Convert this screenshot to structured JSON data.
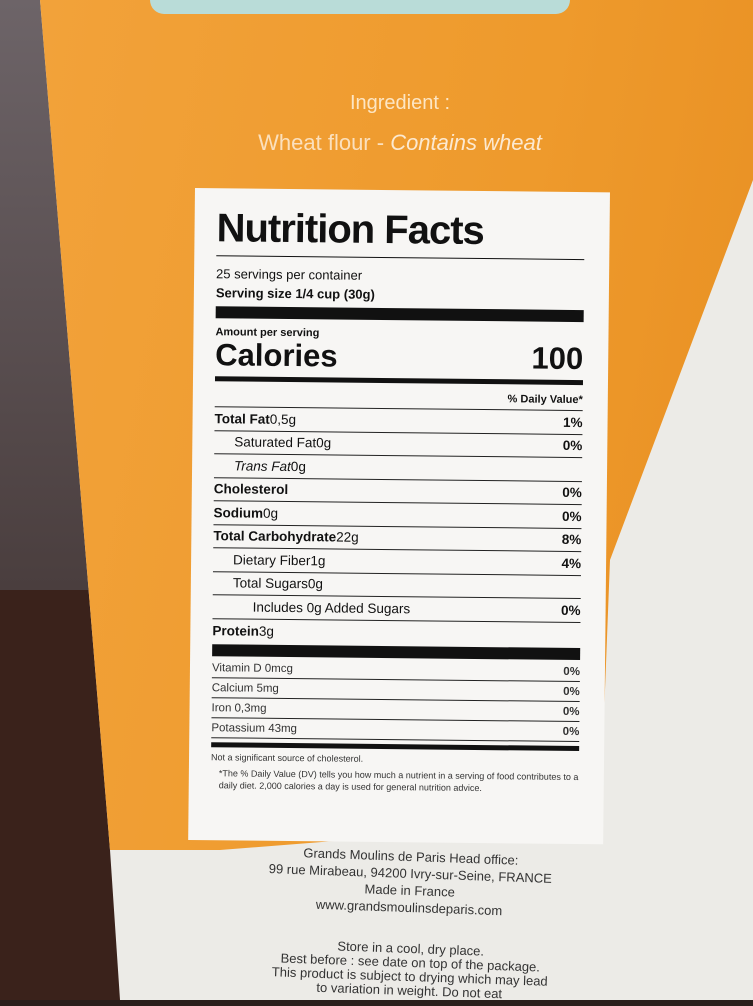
{
  "package": {
    "ingredient_heading": "Ingredient :",
    "ingredient_text": "Wheat flour - ",
    "ingredient_allergen": "Contains wheat",
    "colors": {
      "orange": "#ee9a2c",
      "label": "#f7f6f4",
      "box_white": "#ecebe7"
    }
  },
  "nutrition": {
    "title": "Nutrition Facts",
    "servings": "25 servings per container",
    "serving_size": "Serving size 1/4 cup (30g)",
    "amount_per_serving": "Amount per serving",
    "calories_label": "Calories",
    "calories_value": "100",
    "dv_header": "% Daily Value*",
    "rows": [
      {
        "name": "Total Fat",
        "amount": "0,5g",
        "dv": "1%"
      },
      {
        "name": "Saturated Fat",
        "amount": "0g",
        "dv": "0%"
      },
      {
        "name": "Trans Fat",
        "amount": "0g",
        "dv": ""
      },
      {
        "name": "Cholesterol",
        "amount": "",
        "dv": "0%"
      },
      {
        "name": "Sodium",
        "amount": "0g",
        "dv": "0%"
      },
      {
        "name": "Total Carbohydrate",
        "amount": "22g",
        "dv": "8%"
      },
      {
        "name": "Dietary Fiber",
        "amount": "1g",
        "dv": "4%"
      },
      {
        "name": "Total Sugars",
        "amount": "0g",
        "dv": ""
      },
      {
        "name": "Includes 0g Added Sugars",
        "amount": "",
        "dv": "0%"
      },
      {
        "name": "Protein",
        "amount": "3g",
        "dv": ""
      }
    ],
    "vitamins": [
      {
        "name": "Vitamin D 0mcg",
        "dv": "0%"
      },
      {
        "name": "Calcium 5mg",
        "dv": "0%"
      },
      {
        "name": "Iron 0,3mg",
        "dv": "0%"
      },
      {
        "name": "Potassium 43mg",
        "dv": "0%"
      }
    ],
    "footnote1": "Not a significant source of cholesterol.",
    "footnote2": "*The % Daily Value (DV) tells you how much a nutrient in a serving of food contributes to a daily diet. 2,000 calories a day is used for general nutrition advice."
  },
  "company": {
    "line1": "Grands Moulins de Paris Head office:",
    "line2": "99 rue Mirabeau, 94200 Ivry-sur-Seine, FRANCE",
    "line3": "Made in France",
    "website": "www.grandsmoulinsdeparis.com",
    "storage1": "Store in a cool, dry place.",
    "storage2": "Best before : see date on top of the package.",
    "storage3": "This product is subject to drying which may lead",
    "storage4": "to variation in weight. Do not eat"
  }
}
